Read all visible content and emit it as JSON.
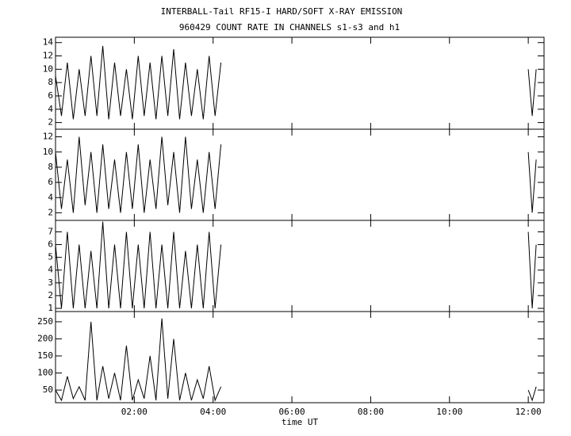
{
  "title": "INTERBALL-Tail RF15-I HARD/SOFT X-RAY EMISSION",
  "subtitle": "960429  COUNT RATE IN CHANNELS s1-s3 and h1",
  "chart_data": [
    {
      "type": "line",
      "xlim": [
        0,
        12.4
      ],
      "x": [
        0,
        0.15,
        0.3,
        0.45,
        0.6,
        0.75,
        0.9,
        1.05,
        1.2,
        1.35,
        1.5,
        1.65,
        1.8,
        1.95,
        2.1,
        2.25,
        2.4,
        2.55,
        2.7,
        2.85,
        3.0,
        3.15,
        3.3,
        3.45,
        3.6,
        3.75,
        3.9,
        4.05,
        4.2,
        8,
        12.0,
        12.1,
        12.2
      ],
      "values": [
        9,
        3,
        11,
        2.5,
        10,
        3,
        12,
        3,
        13.5,
        2.5,
        11,
        3,
        10,
        2.5,
        12,
        3,
        11,
        2.5,
        12,
        3,
        13,
        2.5,
        11,
        3,
        10,
        2.5,
        12,
        3,
        11,
        null,
        10,
        3,
        10
      ],
      "ylim": [
        1,
        14.8
      ],
      "yticks": [
        2,
        4,
        6,
        8,
        10,
        12,
        14
      ]
    },
    {
      "type": "line",
      "xlim": [
        0,
        12.4
      ],
      "x": [
        0,
        0.15,
        0.3,
        0.45,
        0.6,
        0.75,
        0.9,
        1.05,
        1.2,
        1.35,
        1.5,
        1.65,
        1.8,
        1.95,
        2.1,
        2.25,
        2.4,
        2.55,
        2.7,
        2.85,
        3.0,
        3.15,
        3.3,
        3.45,
        3.6,
        3.75,
        3.9,
        4.05,
        4.2,
        8,
        12.0,
        12.1,
        12.2
      ],
      "values": [
        10,
        2.5,
        9,
        2,
        12,
        3,
        10,
        2,
        11,
        2.5,
        9,
        2,
        10,
        2.5,
        11,
        2,
        9,
        2.5,
        12,
        3,
        10,
        2,
        12,
        2.5,
        9,
        2,
        10,
        2.5,
        11,
        null,
        10,
        2,
        9
      ],
      "ylim": [
        1,
        13
      ],
      "yticks": [
        2,
        4,
        6,
        8,
        10,
        12
      ]
    },
    {
      "type": "line",
      "xlim": [
        0,
        12.4
      ],
      "x": [
        0,
        0.15,
        0.3,
        0.45,
        0.6,
        0.75,
        0.9,
        1.05,
        1.2,
        1.35,
        1.5,
        1.65,
        1.8,
        1.95,
        2.1,
        2.25,
        2.4,
        2.55,
        2.7,
        2.85,
        3.0,
        3.15,
        3.3,
        3.45,
        3.6,
        3.75,
        3.9,
        4.05,
        4.2,
        8,
        12.0,
        12.1,
        12.2
      ],
      "values": [
        6,
        1,
        7,
        1,
        6,
        1,
        5.5,
        1,
        7.8,
        1,
        6,
        1,
        7,
        1,
        6,
        1,
        7,
        1,
        6,
        1,
        7,
        1,
        5.5,
        1,
        6,
        1,
        7,
        1,
        6,
        null,
        7,
        1,
        6
      ],
      "ylim": [
        0.75,
        7.9
      ],
      "yticks": [
        1,
        2,
        3,
        4,
        5,
        6,
        7
      ]
    },
    {
      "type": "line",
      "xlim": [
        0,
        12.4
      ],
      "x_label": "time UT",
      "xticks": [
        {
          "value": 2,
          "label": "02:00"
        },
        {
          "value": 4,
          "label": "04:00"
        },
        {
          "value": 6,
          "label": "06:00"
        },
        {
          "value": 8,
          "label": "08:00"
        },
        {
          "value": 10,
          "label": "10:00"
        },
        {
          "value": 12,
          "label": "12:00"
        }
      ],
      "x": [
        0,
        0.15,
        0.3,
        0.45,
        0.6,
        0.75,
        0.9,
        1.05,
        1.2,
        1.35,
        1.5,
        1.65,
        1.8,
        1.95,
        2.1,
        2.25,
        2.4,
        2.55,
        2.7,
        2.85,
        3.0,
        3.15,
        3.3,
        3.45,
        3.6,
        3.75,
        3.9,
        4.05,
        4.2,
        8,
        12.0,
        12.1,
        12.2
      ],
      "values": [
        50,
        20,
        90,
        25,
        60,
        20,
        250,
        20,
        120,
        25,
        100,
        20,
        180,
        20,
        80,
        25,
        150,
        20,
        260,
        25,
        200,
        20,
        100,
        20,
        80,
        25,
        120,
        20,
        60,
        null,
        50,
        20,
        60
      ],
      "ylim": [
        13,
        280
      ],
      "yticks": [
        50,
        100,
        150,
        200,
        250
      ]
    }
  ]
}
